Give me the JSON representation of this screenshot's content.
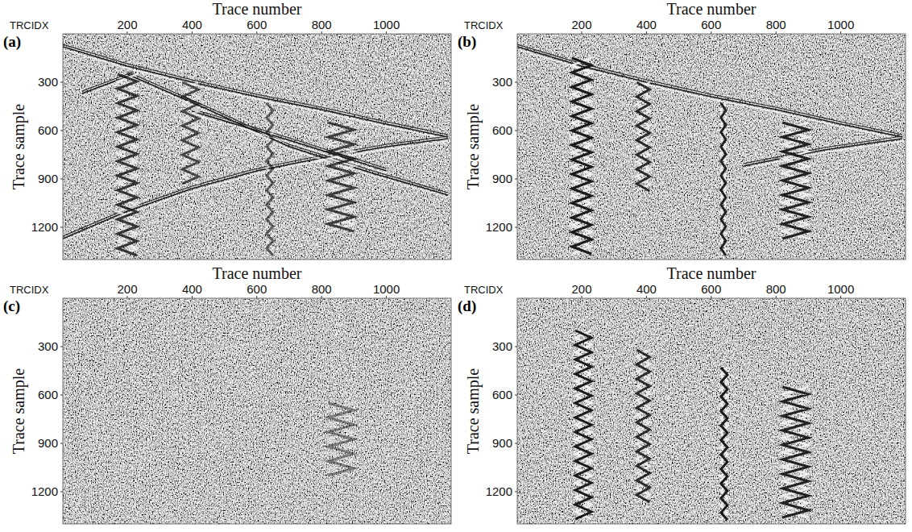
{
  "chart_data": [
    {
      "type": "image",
      "label": "(a)",
      "x_title": "Trace number",
      "x_name": "TRCIDX",
      "y_title": "Trace sample",
      "xlim": [
        1,
        1200
      ],
      "ylim": [
        1400,
        0
      ],
      "xticks": [
        200,
        400,
        600,
        800,
        1000
      ],
      "yticks": [
        300,
        600,
        900,
        1200
      ],
      "lines": [
        {
          "x": [
            1,
            200,
            400,
            600,
            800,
            1000,
            1190
          ],
          "y": [
            80,
            200,
            300,
            390,
            470,
            560,
            640
          ]
        },
        {
          "x": [
            1,
            200,
            400,
            600,
            800,
            1000,
            1190
          ],
          "y": [
            1270,
            1100,
            960,
            850,
            770,
            700,
            650
          ]
        },
        {
          "x": [
            60,
            220
          ],
          "y": [
            370,
            250
          ]
        },
        {
          "x": [
            200,
            450,
            700
          ],
          "y": [
            250,
            470,
            700
          ]
        },
        {
          "x": [
            400,
            700,
            1000
          ],
          "y": [
            480,
            660,
            850
          ]
        },
        {
          "x": [
            700,
            950,
            1190
          ],
          "y": [
            700,
            860,
            1000
          ]
        }
      ],
      "bursts": [
        {
          "x": [
            170,
            230
          ],
          "y": [
            250,
            1400
          ],
          "amplitude": 0.8
        },
        {
          "x": [
            370,
            420
          ],
          "y": [
            300,
            950
          ],
          "amplitude": 0.7
        },
        {
          "x": [
            630,
            650
          ],
          "y": [
            430,
            1400
          ],
          "amplitude": 0.6
        },
        {
          "x": [
            820,
            900
          ],
          "y": [
            550,
            1250
          ],
          "amplitude": 0.75
        }
      ]
    },
    {
      "type": "image",
      "label": "(b)",
      "x_title": "Trace number",
      "x_name": "TRCIDX",
      "y_title": "Trace sample",
      "xlim": [
        1,
        1200
      ],
      "ylim": [
        1400,
        0
      ],
      "xticks": [
        200,
        400,
        600,
        800,
        1000
      ],
      "yticks": [
        300,
        600,
        900,
        1200
      ],
      "lines": [
        {
          "x": [
            1,
            200,
            400,
            600,
            800,
            1000,
            1190
          ],
          "y": [
            80,
            200,
            300,
            390,
            470,
            560,
            640
          ]
        },
        {
          "x": [
            700,
            950,
            1190
          ],
          "y": [
            820,
            720,
            650
          ]
        }
      ],
      "bursts": [
        {
          "x": [
            170,
            230
          ],
          "y": [
            150,
            1400
          ],
          "amplitude": 0.95
        },
        {
          "x": [
            370,
            410
          ],
          "y": [
            300,
            1000
          ],
          "amplitude": 0.85
        },
        {
          "x": [
            630,
            645
          ],
          "y": [
            430,
            1400
          ],
          "amplitude": 0.9
        },
        {
          "x": [
            820,
            900
          ],
          "y": [
            550,
            1300
          ],
          "amplitude": 0.9
        }
      ]
    },
    {
      "type": "image",
      "label": "(c)",
      "x_title": "Trace number",
      "x_name": "TRCIDX",
      "y_title": "Trace sample",
      "xlim": [
        1,
        1200
      ],
      "ylim": [
        1400,
        0
      ],
      "xticks": [
        200,
        400,
        600,
        800,
        1000
      ],
      "yticks": [
        300,
        600,
        900,
        1200
      ],
      "lines": [],
      "bursts": [
        {
          "x": [
            820,
            900
          ],
          "y": [
            650,
            1100
          ],
          "amplitude": 0.45
        }
      ]
    },
    {
      "type": "image",
      "label": "(d)",
      "x_title": "Trace number",
      "x_name": "TRCIDX",
      "y_title": "Trace sample",
      "xlim": [
        1,
        1200
      ],
      "ylim": [
        1400,
        0
      ],
      "xticks": [
        200,
        400,
        600,
        800,
        1000
      ],
      "yticks": [
        300,
        600,
        900,
        1200
      ],
      "lines": [],
      "bursts": [
        {
          "x": [
            180,
            230
          ],
          "y": [
            200,
            1400
          ],
          "amplitude": 0.95
        },
        {
          "x": [
            370,
            410
          ],
          "y": [
            320,
            1300
          ],
          "amplitude": 0.85
        },
        {
          "x": [
            630,
            650
          ],
          "y": [
            430,
            1400
          ],
          "amplitude": 0.95
        },
        {
          "x": [
            820,
            900
          ],
          "y": [
            550,
            1400
          ],
          "amplitude": 0.9
        }
      ]
    }
  ]
}
